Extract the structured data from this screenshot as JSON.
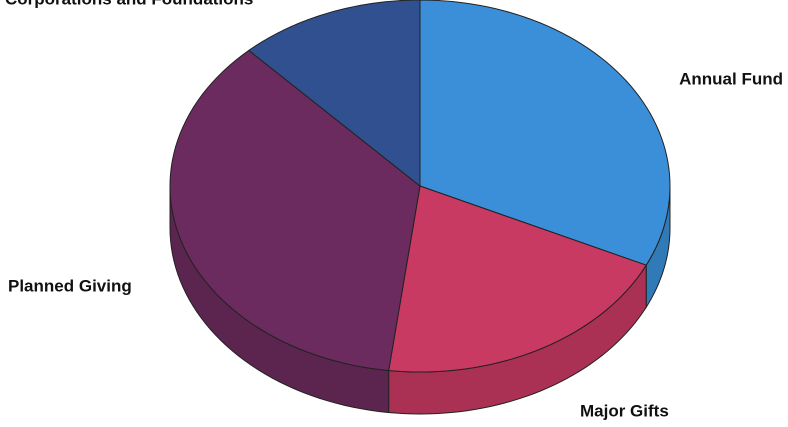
{
  "chart_data": {
    "type": "pie",
    "categories": [
      "Annual Fund",
      "Major Gifts",
      "Planned Giving",
      "Corporations and Foundations"
    ],
    "values": [
      32,
      20,
      36,
      12
    ],
    "colors": [
      "#3a8fd8",
      "#c83a62",
      "#6b2b5e",
      "#30508f"
    ]
  }
}
